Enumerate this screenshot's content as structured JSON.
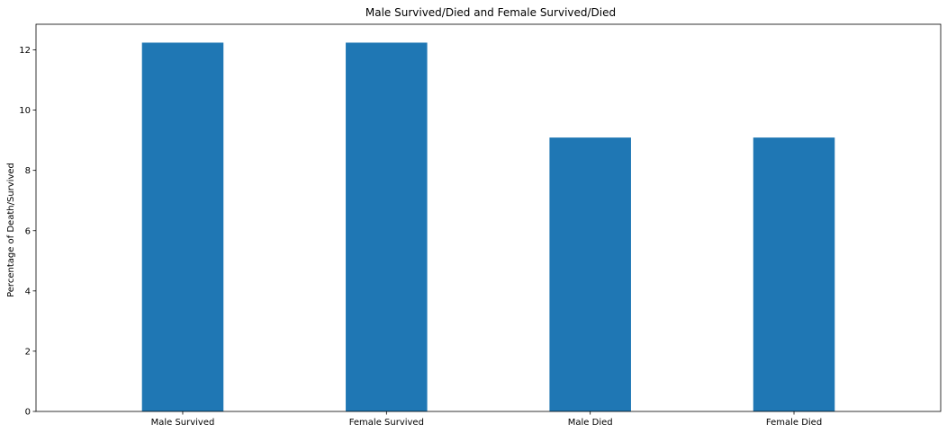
{
  "chart_data": {
    "type": "bar",
    "title": "Male Survived/Died and Female Survived/Died",
    "xlabel": "",
    "ylabel": "Percentage of Death/Survived",
    "categories": [
      "Male Survived",
      "Female Survived",
      "Male Died",
      "Female Died"
    ],
    "values": [
      12.24,
      12.24,
      9.09,
      9.09
    ],
    "ylim": [
      0,
      12.85
    ],
    "yticks": [
      0,
      2,
      4,
      6,
      8,
      10,
      12
    ],
    "bar_color": "#1f77b4",
    "grid": false,
    "legend": "none"
  }
}
